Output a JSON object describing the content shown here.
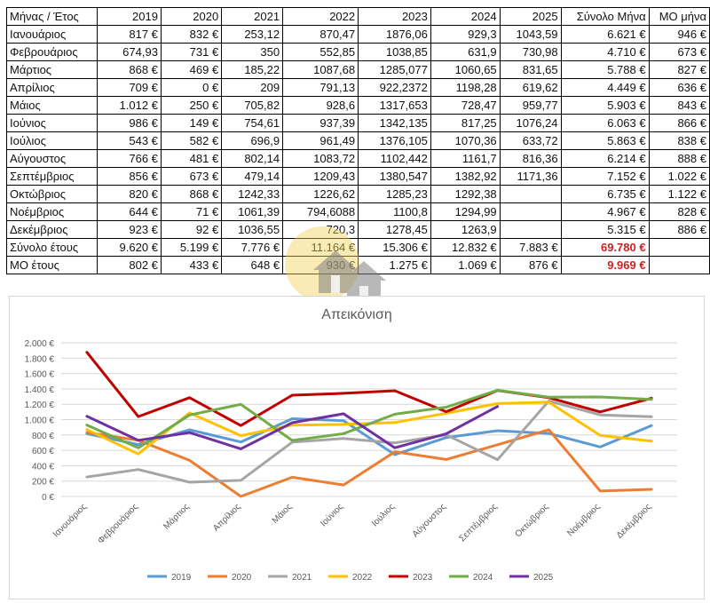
{
  "table": {
    "header": [
      "Μήνας / Έτος",
      "2019",
      "2020",
      "2021",
      "2022",
      "2023",
      "2024",
      "2025",
      "Σύνολο Μήνα",
      "ΜΟ μήνα"
    ],
    "rows": [
      [
        "Ιανουάριος",
        "817 €",
        "832 €",
        "253,12",
        "870,47",
        "1876,06",
        "929,3",
        "1043,59",
        "6.621 €",
        "946 €"
      ],
      [
        "Φεβρουάριος",
        "674,93",
        "731 €",
        "350",
        "552,85",
        "1038,85",
        "631,9",
        "730,98",
        "4.710 €",
        "673 €"
      ],
      [
        "Μάρτιος",
        "868 €",
        "469 €",
        "185,22",
        "1087,68",
        "1285,077",
        "1060,65",
        "831,65",
        "5.788 €",
        "827 €"
      ],
      [
        "Απρίλιος",
        "709 €",
        "0 €",
        "209",
        "791,13",
        "922,2372",
        "1198,28",
        "619,62",
        "4.449 €",
        "636 €"
      ],
      [
        "Μάιος",
        "1.012 €",
        "250 €",
        "705,82",
        "928,6",
        "1317,653",
        "728,47",
        "959,77",
        "5.903 €",
        "843 €"
      ],
      [
        "Ιούνιος",
        "986 €",
        "149 €",
        "754,61",
        "937,39",
        "1342,135",
        "817,25",
        "1076,24",
        "6.063 €",
        "866 €"
      ],
      [
        "Ιούλιος",
        "543 €",
        "582 €",
        "696,9",
        "961,49",
        "1376,105",
        "1070,36",
        "633,72",
        "5.863 €",
        "838 €"
      ],
      [
        "Αύγουστος",
        "766 €",
        "481 €",
        "802,14",
        "1083,72",
        "1102,442",
        "1161,7",
        "816,36",
        "6.214 €",
        "888 €"
      ],
      [
        "Σεπτέμβριος",
        "856 €",
        "673 €",
        "479,14",
        "1209,43",
        "1380,547",
        "1382,92",
        "1171,36",
        "7.152 €",
        "1.022 €"
      ],
      [
        "Οκτώβριος",
        "820 €",
        "868 €",
        "1242,33",
        "1226,62",
        "1285,23",
        "1292,38",
        "",
        "6.735 €",
        "1.122 €"
      ],
      [
        "Νοέμβριος",
        "644 €",
        "71 €",
        "1061,39",
        "794,6088",
        "1100,8",
        "1294,99",
        "",
        "4.967 €",
        "828 €"
      ],
      [
        "Δεκέμβριος",
        "923 €",
        "92 €",
        "1036,55",
        "720,3",
        "1278,45",
        "1263,9",
        "",
        "5.315 €",
        "886 €"
      ],
      [
        "Σύνολο έτους",
        "9.620 €",
        "5.199 €",
        "7.776 €",
        "11.164 €",
        "15.306 €",
        "12.832 €",
        "7.883 €",
        "69.780 €",
        ""
      ],
      [
        "ΜΟ έτους",
        "802 €",
        "433 €",
        "648 €",
        "930 €",
        "1.275 €",
        "1.069 €",
        "876 €",
        "9.969 €",
        ""
      ]
    ],
    "red_cells": [
      [
        12,
        8
      ],
      [
        13,
        8
      ]
    ]
  },
  "chart_data": {
    "type": "line",
    "title": "Απεικόνιση",
    "categories": [
      "Ιανουάριος",
      "Φεβρουάριος",
      "Μάρτιος",
      "Απρίλιος",
      "Μάιος",
      "Ιούνιος",
      "Ιούλιος",
      "Αύγουστος",
      "Σεπτέμβριος",
      "Οκτώβριος",
      "Νοέμβριος",
      "Δεκέμβριος"
    ],
    "ylim": [
      0,
      2000
    ],
    "yticks": [
      0,
      200,
      400,
      600,
      800,
      1000,
      1200,
      1400,
      1600,
      1800,
      2000
    ],
    "ytick_labels": [
      "0 €",
      "200 €",
      "400 €",
      "600 €",
      "800 €",
      "1.000 €",
      "1.200 €",
      "1.400 €",
      "1.600 €",
      "1.800 €",
      "2.000 €"
    ],
    "grid": true,
    "legend_position": "bottom",
    "series": [
      {
        "name": "2019",
        "color": "#5b9bd5",
        "values": [
          817,
          674.93,
          868,
          709,
          1012,
          986,
          543,
          766,
          856,
          820,
          644,
          923
        ]
      },
      {
        "name": "2020",
        "color": "#ed7d31",
        "values": [
          832,
          731,
          469,
          0,
          250,
          149,
          582,
          481,
          673,
          868,
          71,
          92
        ]
      },
      {
        "name": "2021",
        "color": "#a5a5a5",
        "values": [
          253.12,
          350,
          185.22,
          209,
          705.82,
          754.61,
          696.9,
          802.14,
          479.14,
          1242.33,
          1061.39,
          1036.55
        ]
      },
      {
        "name": "2022",
        "color": "#ffc000",
        "values": [
          870.47,
          552.85,
          1087.68,
          791.13,
          928.6,
          937.39,
          961.49,
          1083.72,
          1209.43,
          1226.62,
          794.6088,
          720.3
        ]
      },
      {
        "name": "2023",
        "color": "#c00000",
        "values": [
          1876.06,
          1038.85,
          1285.077,
          922.2372,
          1317.653,
          1342.135,
          1376.105,
          1102.442,
          1380.547,
          1285.23,
          1100.8,
          1278.45
        ]
      },
      {
        "name": "2024",
        "color": "#70ad47",
        "values": [
          929.3,
          631.9,
          1060.65,
          1198.28,
          728.47,
          817.25,
          1070.36,
          1161.7,
          1382.92,
          1292.38,
          1294.99,
          1263.9
        ]
      },
      {
        "name": "2025",
        "color": "#7030a0",
        "values": [
          1043.59,
          730.98,
          831.65,
          619.62,
          959.77,
          1076.24,
          633.72,
          816.36,
          1171.36,
          null,
          null,
          null
        ]
      }
    ]
  }
}
